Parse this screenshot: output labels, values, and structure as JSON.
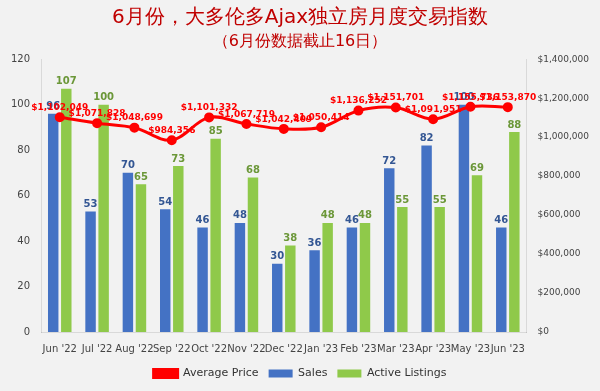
{
  "chart_data": {
    "type": "bar",
    "title": "6月份，大多伦多Ajax独立房月度交易指数",
    "subtitle": "（6月份数据截止16日）",
    "categories": [
      "Jun '22",
      "Jul '22",
      "Aug '22",
      "Sep '22",
      "Oct '22",
      "Nov '22",
      "Dec '22",
      "Jan '23",
      "Feb '23",
      "Mar '23",
      "Apr '23",
      "May '23",
      "Jun '23"
    ],
    "series": [
      {
        "name": "Sales",
        "color": "#4472c4",
        "values": [
          96,
          53,
          70,
          54,
          46,
          48,
          30,
          36,
          46,
          72,
          82,
          100,
          46
        ]
      },
      {
        "name": "Active Listings",
        "color": "#8fc94a",
        "values": [
          107,
          100,
          65,
          73,
          85,
          68,
          38,
          48,
          48,
          55,
          55,
          69,
          88
        ]
      },
      {
        "name": "Average Price",
        "type": "line",
        "axis": "y2",
        "color": "#ff0000",
        "marker": "circle",
        "values": [
          1102049,
          1071828,
          1048699,
          984356,
          1101332,
          1067719,
          1042409,
          1050414,
          1136252,
          1151701,
          1091951,
          1155736,
          1153870
        ],
        "value_labels": [
          "$1,102,049",
          "$1,071,828",
          "$1,048,699",
          "$984,356",
          "$1,101,332",
          "$1,067,719",
          "$1,042,409",
          "$1,050,414",
          "$1,136,252",
          "$1,151,701",
          "$1,091,951",
          "$1,155,736",
          "$1,153,870"
        ]
      }
    ],
    "ylim": [
      0,
      120
    ],
    "yticks": [
      0,
      20,
      40,
      60,
      80,
      100,
      120
    ],
    "y2lim": [
      0,
      1400000
    ],
    "y2ticks": [
      {
        "value": 0,
        "label": "$0"
      },
      {
        "value": 200000,
        "label": "$200,000"
      },
      {
        "value": 400000,
        "label": "$400,000"
      },
      {
        "value": 600000,
        "label": "$600,000"
      },
      {
        "value": 800000,
        "label": "$800,000"
      },
      {
        "value": 1000000,
        "label": "$1,000,000"
      },
      {
        "value": 1200000,
        "label": "$1,200,000"
      },
      {
        "value": 1400000,
        "label": "$1,400,000"
      }
    ],
    "grid": false,
    "legend": "bottom",
    "data_labels": true
  }
}
